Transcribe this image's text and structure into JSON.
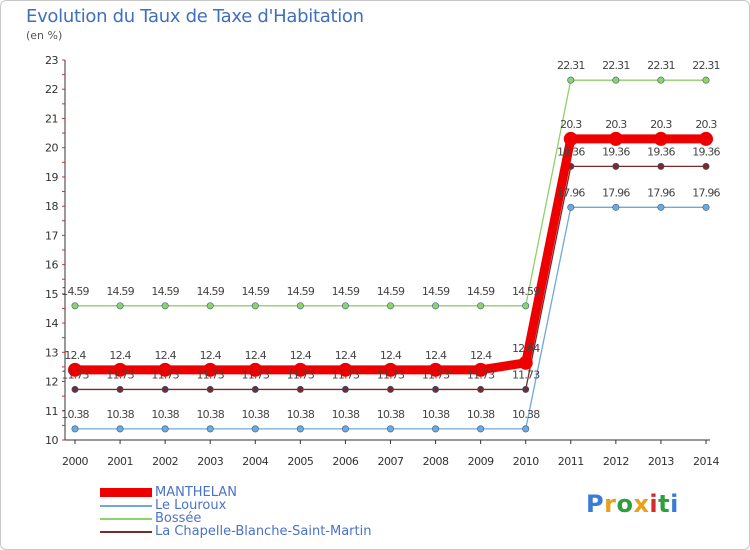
{
  "title": "Evolution du Taux de Taxe d'Habitation",
  "subtitle": "(en %)",
  "logo": {
    "text": "Proxiti",
    "colors": [
      "#3a7bd5",
      "#e8a21a",
      "#2e9e3e",
      "#e8a21a",
      "#d62b2b",
      "#2e9e3e",
      "#3a7bd5"
    ]
  },
  "chart_data": {
    "type": "line",
    "x": [
      2000,
      2001,
      2002,
      2003,
      2004,
      2005,
      2006,
      2007,
      2008,
      2009,
      2010,
      2011,
      2012,
      2013,
      2014
    ],
    "ylim": [
      10,
      23
    ],
    "yticks": [
      10,
      11,
      12,
      13,
      14,
      15,
      16,
      17,
      18,
      19,
      20,
      21,
      22,
      23
    ],
    "xlabel": "",
    "ylabel": "",
    "grid": false,
    "legend_position": "bottom-left",
    "series": [
      {
        "name": "MANTHELAN",
        "color": "#ee0000",
        "emphasis": true,
        "values": [
          12.4,
          12.4,
          12.4,
          12.4,
          12.4,
          12.4,
          12.4,
          12.4,
          12.4,
          12.4,
          12.64,
          20.3,
          20.3,
          20.3,
          20.3
        ],
        "labels": [
          "12.4",
          "12.4",
          "12.4",
          "12.4",
          "12.4",
          "12.4",
          "12.4",
          "12.4",
          "12.4",
          "12.4",
          "12.64",
          "20.3",
          "20.3",
          "20.3",
          "20.3"
        ]
      },
      {
        "name": "Le Louroux",
        "color": "#6fa8dc",
        "emphasis": false,
        "values": [
          10.38,
          10.38,
          10.38,
          10.38,
          10.38,
          10.38,
          10.38,
          10.38,
          10.38,
          10.38,
          10.38,
          17.96,
          17.96,
          17.96,
          17.96
        ],
        "labels": [
          "10.38",
          "10.38",
          "10.38",
          "10.38",
          "10.38",
          "10.38",
          "10.38",
          "10.38",
          "10.38",
          "10.38",
          "10.38",
          "17.96",
          "17.96",
          "17.96",
          "17.96"
        ]
      },
      {
        "name": "Bossée",
        "color": "#8fd16a",
        "emphasis": false,
        "values": [
          14.59,
          14.59,
          14.59,
          14.59,
          14.59,
          14.59,
          14.59,
          14.59,
          14.59,
          14.59,
          14.59,
          22.31,
          22.31,
          22.31,
          22.31
        ],
        "labels": [
          "14.59",
          "14.59",
          "14.59",
          "14.59",
          "14.59",
          "14.59",
          "14.59",
          "14.59",
          "14.59",
          "14.59",
          "14.59",
          "22.31",
          "22.31",
          "22.31",
          "22.31"
        ]
      },
      {
        "name": "La Chapelle-Blanche-Saint-Martin",
        "color": "#7a2a2a",
        "emphasis": false,
        "values": [
          11.73,
          11.73,
          11.73,
          11.73,
          11.73,
          11.73,
          11.73,
          11.73,
          11.73,
          11.73,
          11.73,
          19.36,
          19.36,
          19.36,
          19.36
        ],
        "labels": [
          "11.73",
          "11.73",
          "11.73",
          "11.73",
          "11.73",
          "11.73",
          "11.73",
          "11.73",
          "11.73",
          "11.73",
          "11.73",
          "19.36",
          "19.36",
          "19.36",
          "19.36"
        ]
      }
    ]
  }
}
